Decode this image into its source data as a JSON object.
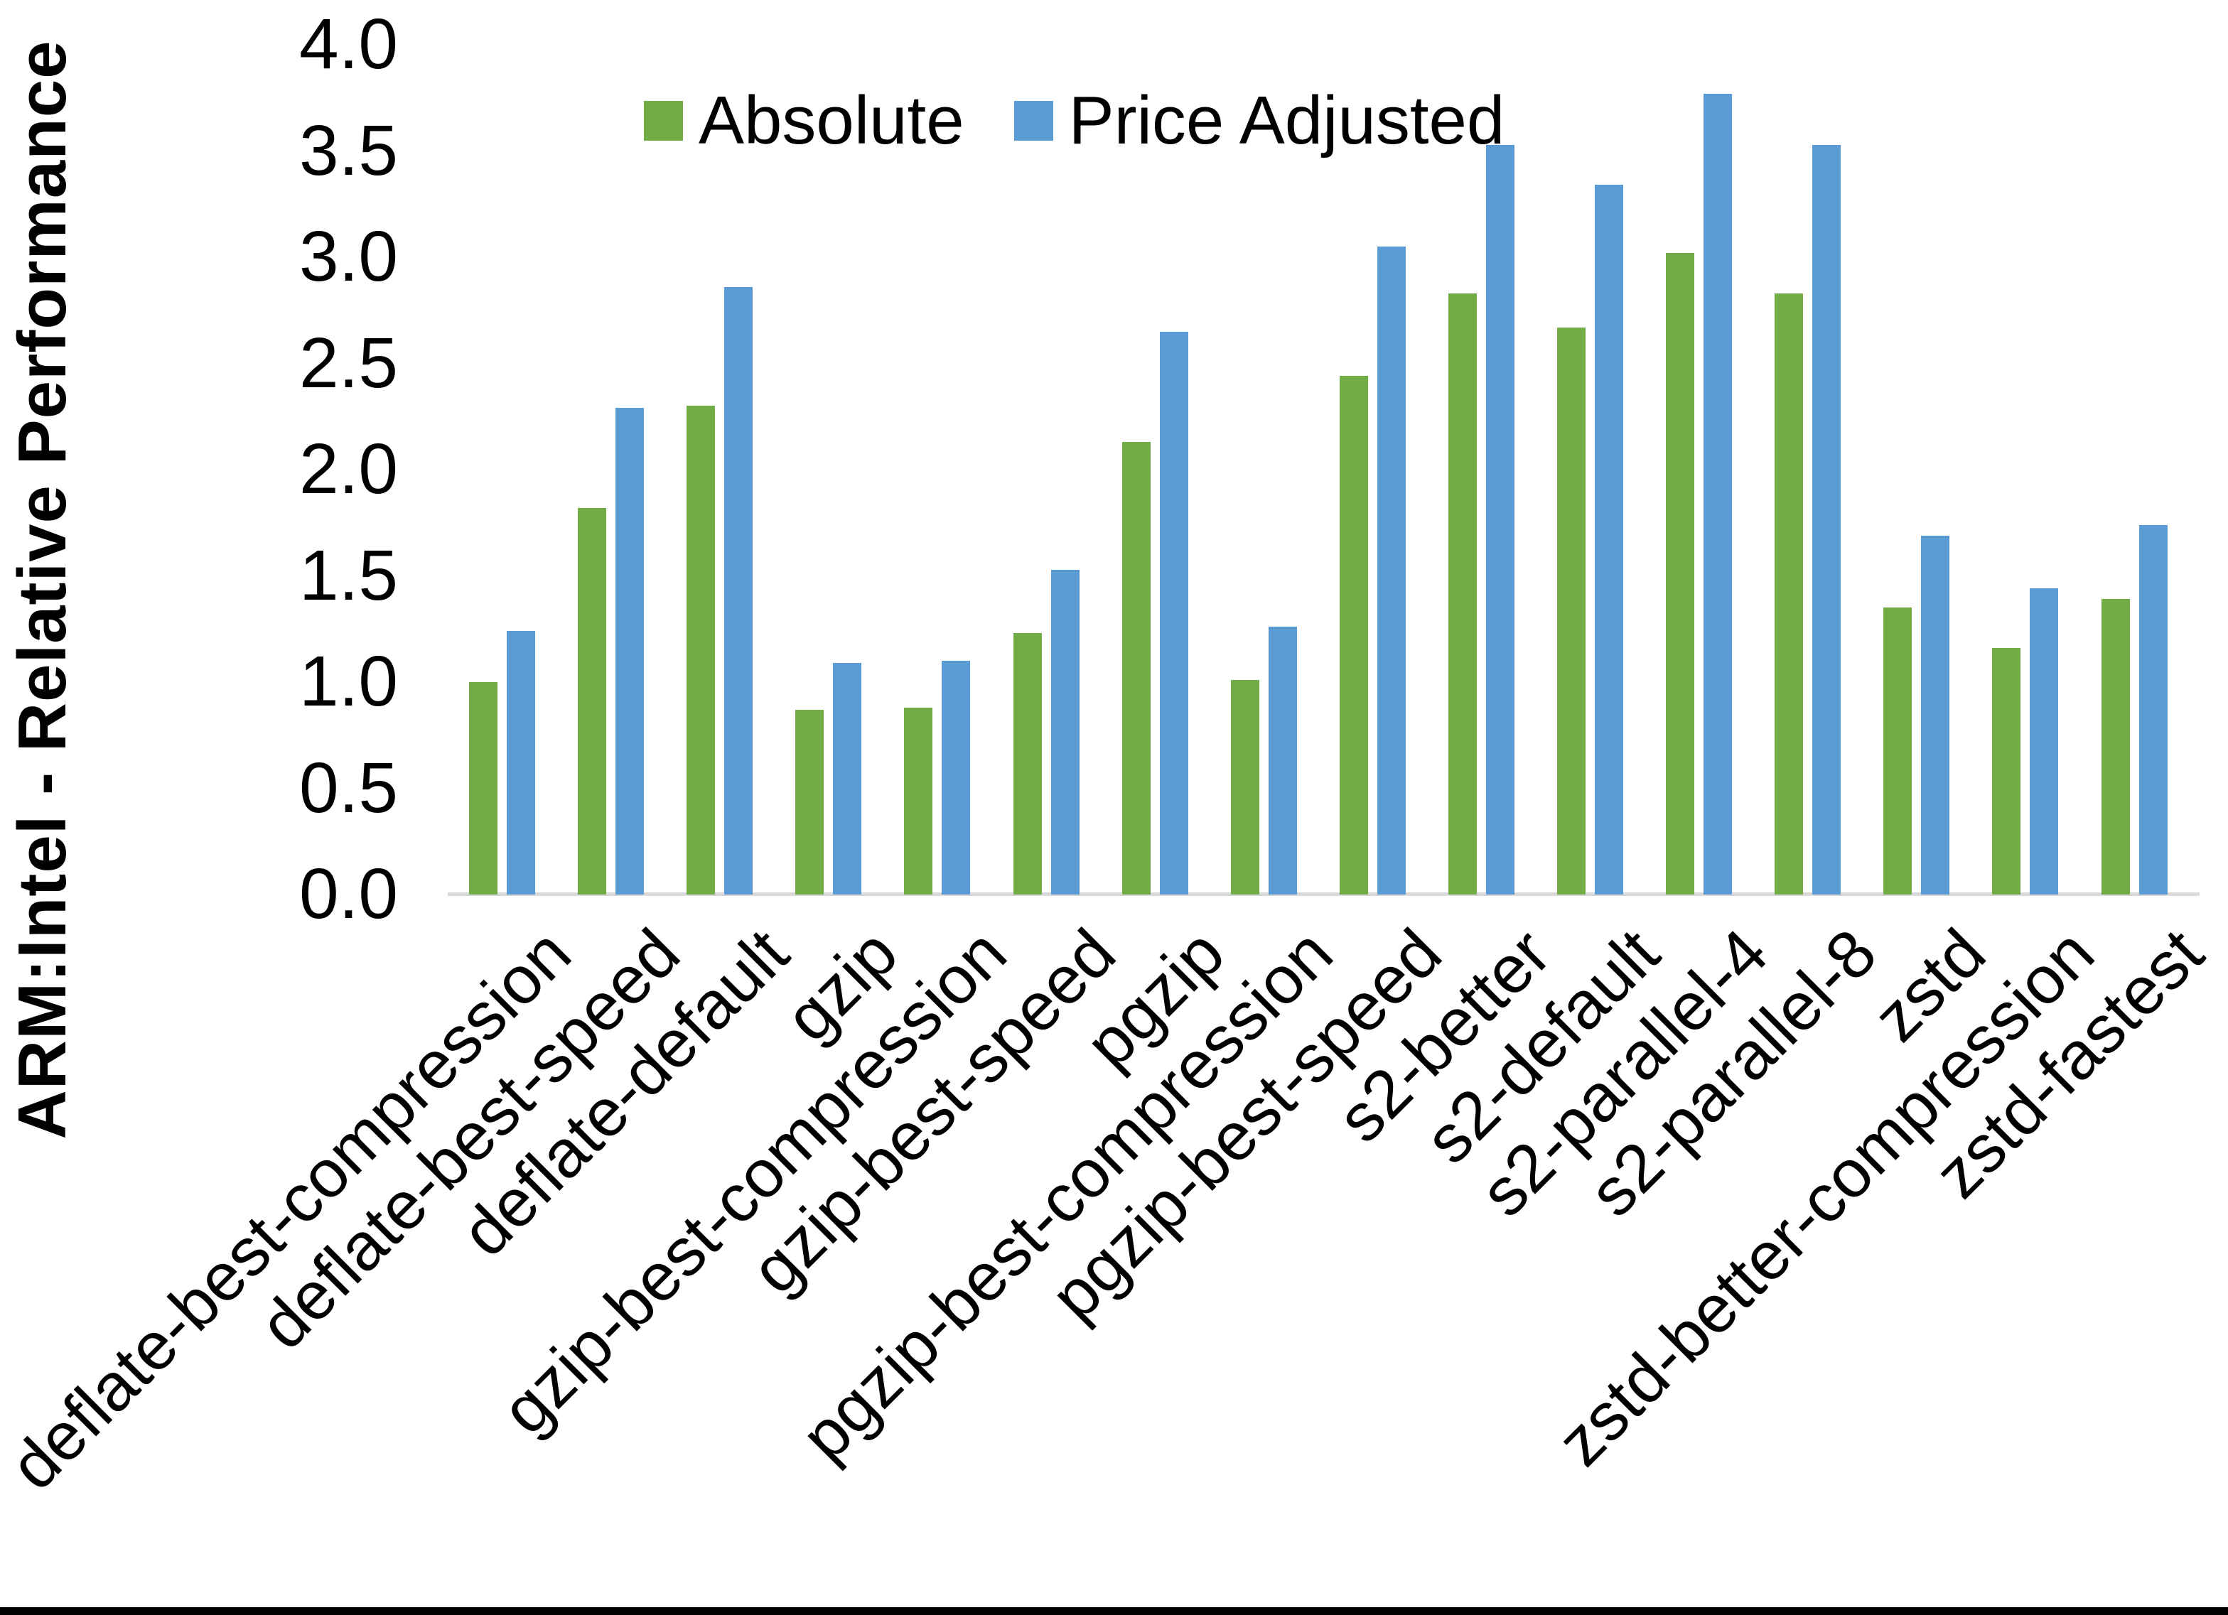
{
  "chart_data": {
    "type": "bar",
    "title": "",
    "xlabel": "",
    "ylabel": "ARM:Intel - Relative Performance",
    "ylim": [
      0.0,
      4.0
    ],
    "ytick_step": 0.5,
    "ytick_labels": [
      "0.0",
      "0.5",
      "1.0",
      "1.5",
      "2.0",
      "2.5",
      "3.0",
      "3.5",
      "4.0"
    ],
    "grid": false,
    "legend_position": "top-center",
    "categories": [
      "deflate-best-compression",
      "deflate-best-speed",
      "deflate-default",
      "gzip",
      "gzip-best-compression",
      "gzip-best-speed",
      "pgzip",
      "pgzip-best-compression",
      "pgzip-best-speed",
      "s2-better",
      "s2-default",
      "s2-parallel-4",
      "s2-parallel-8",
      "zstd",
      "zstd-better-compression",
      "zstd-fastest"
    ],
    "series": [
      {
        "name": "Absolute",
        "color": "#70AD47",
        "values": [
          1.0,
          1.82,
          2.3,
          0.87,
          0.88,
          1.23,
          2.13,
          1.01,
          2.44,
          2.83,
          2.67,
          3.02,
          2.83,
          1.35,
          1.16,
          1.39
        ]
      },
      {
        "name": "Price Adjusted",
        "color": "#5B9BD5",
        "values": [
          1.24,
          2.29,
          2.86,
          1.09,
          1.1,
          1.53,
          2.65,
          1.26,
          3.05,
          3.53,
          3.34,
          3.77,
          3.53,
          1.69,
          1.44,
          1.74
        ]
      }
    ]
  },
  "colors": {
    "axis_line": "#D9D9D9",
    "text": "#000000",
    "background": "#FFFFFF",
    "bottom_border": "#000000"
  }
}
